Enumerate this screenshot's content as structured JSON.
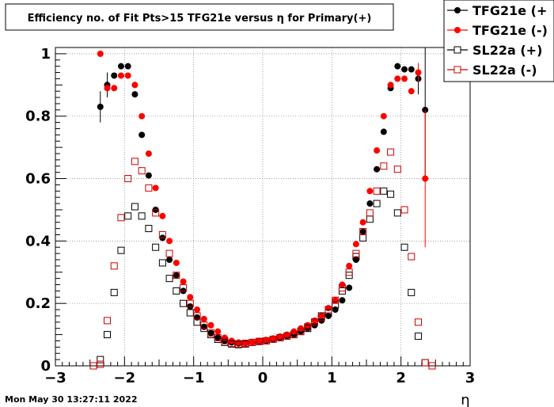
{
  "chart_data": {
    "type": "scatter",
    "title": "Efficiency no. of Fit Pts>15 TFG21e versus η for Primary(+)",
    "xlabel": "η",
    "ylabel": "",
    "xlim": [
      -3,
      3
    ],
    "ylim": [
      0,
      1.02
    ],
    "x_ticks": [
      "−3",
      "−2",
      "−1",
      "0",
      "1",
      "2",
      "3"
    ],
    "y_ticks": [
      "0",
      "0.2",
      "0.4",
      "0.6",
      "0.8",
      "1"
    ],
    "grid": true,
    "legend_position": "top-right",
    "timestamp": "Mon May 30 13:27:11 2022",
    "series": [
      {
        "name": "TFG21e (+",
        "color": "#000000",
        "marker": "filled-circle",
        "x": [
          -2.35,
          -2.25,
          -2.15,
          -2.05,
          -1.95,
          -1.85,
          -1.75,
          -1.65,
          -1.55,
          -1.45,
          -1.35,
          -1.25,
          -1.15,
          -1.05,
          -0.95,
          -0.85,
          -0.75,
          -0.65,
          -0.55,
          -0.45,
          -0.35,
          -0.25,
          -0.15,
          -0.05,
          0.05,
          0.15,
          0.25,
          0.35,
          0.45,
          0.55,
          0.65,
          0.75,
          0.85,
          0.95,
          1.05,
          1.15,
          1.25,
          1.35,
          1.45,
          1.55,
          1.65,
          1.75,
          1.85,
          1.95,
          2.05,
          2.15,
          2.25,
          2.35
        ],
        "y": [
          0.83,
          0.9,
          0.93,
          0.96,
          0.96,
          0.87,
          0.74,
          0.61,
          0.5,
          0.41,
          0.34,
          0.29,
          0.24,
          0.19,
          0.155,
          0.125,
          0.105,
          0.09,
          0.08,
          0.075,
          0.072,
          0.073,
          0.075,
          0.078,
          0.08,
          0.085,
          0.09,
          0.095,
          0.1,
          0.11,
          0.12,
          0.13,
          0.145,
          0.16,
          0.18,
          0.21,
          0.25,
          0.34,
          0.43,
          0.52,
          0.63,
          0.75,
          0.89,
          0.96,
          0.95,
          0.95,
          0.92,
          0.82
        ],
        "yerr": [
          0.05,
          0.04,
          0,
          0,
          0,
          0,
          0,
          0,
          0,
          0,
          0,
          0,
          0,
          0,
          0,
          0,
          0,
          0,
          0,
          0,
          0,
          0,
          0,
          0,
          0,
          0,
          0,
          0,
          0,
          0,
          0,
          0,
          0,
          0,
          0,
          0,
          0,
          0,
          0,
          0,
          0,
          0,
          0,
          0,
          0,
          0,
          0.05,
          0.22
        ]
      },
      {
        "name": "TFG21e (-)",
        "color": "#ff0000",
        "marker": "filled-circle",
        "x": [
          -2.35,
          -2.25,
          -2.15,
          -2.05,
          -1.95,
          -1.85,
          -1.75,
          -1.65,
          -1.55,
          -1.45,
          -1.35,
          -1.25,
          -1.15,
          -1.05,
          -0.95,
          -0.85,
          -0.75,
          -0.65,
          -0.55,
          -0.45,
          -0.35,
          -0.25,
          -0.15,
          -0.05,
          0.05,
          0.15,
          0.25,
          0.35,
          0.45,
          0.55,
          0.65,
          0.75,
          0.85,
          0.95,
          1.05,
          1.15,
          1.25,
          1.35,
          1.45,
          1.55,
          1.65,
          1.75,
          1.85,
          1.95,
          2.05,
          2.15,
          2.25,
          2.35
        ],
        "y": [
          1.0,
          0.89,
          0.89,
          0.93,
          0.93,
          0.9,
          0.8,
          0.68,
          0.57,
          0.48,
          0.4,
          0.33,
          0.27,
          0.22,
          0.18,
          0.15,
          0.13,
          0.11,
          0.09,
          0.08,
          0.075,
          0.072,
          0.075,
          0.08,
          0.083,
          0.088,
          0.094,
          0.1,
          0.11,
          0.12,
          0.13,
          0.145,
          0.16,
          0.185,
          0.21,
          0.26,
          0.32,
          0.39,
          0.46,
          0.56,
          0.69,
          0.8,
          0.9,
          0.92,
          0.92,
          0.88,
          0.94,
          0.6
        ],
        "yerr": [
          0,
          0,
          0,
          0,
          0,
          0,
          0,
          0,
          0,
          0,
          0,
          0,
          0,
          0,
          0,
          0,
          0,
          0,
          0,
          0,
          0,
          0,
          0,
          0,
          0,
          0,
          0,
          0,
          0,
          0,
          0,
          0,
          0,
          0,
          0,
          0,
          0,
          0,
          0,
          0,
          0,
          0,
          0,
          0,
          0,
          0,
          0.03,
          0.22
        ]
      },
      {
        "name": "SL22a (+)",
        "color": "#000000",
        "marker": "open-square",
        "x": [
          -2.45,
          -2.35,
          -2.25,
          -2.15,
          -2.05,
          -1.95,
          -1.85,
          -1.75,
          -1.65,
          -1.55,
          -1.45,
          -1.35,
          -1.25,
          -1.15,
          -1.05,
          -0.95,
          -0.85,
          -0.75,
          -0.65,
          -0.55,
          -0.45,
          -0.35,
          -0.25,
          -0.15,
          -0.05,
          0.05,
          0.15,
          0.25,
          0.35,
          0.45,
          0.55,
          0.65,
          0.75,
          0.85,
          0.95,
          1.05,
          1.15,
          1.25,
          1.35,
          1.45,
          1.55,
          1.65,
          1.75,
          1.85,
          1.95,
          2.05,
          2.15,
          2.25,
          2.35,
          2.45
        ],
        "y": [
          0.0,
          0.02,
          0.1,
          0.235,
          0.37,
          0.48,
          0.51,
          0.48,
          0.44,
          0.38,
          0.33,
          0.28,
          0.24,
          0.2,
          0.17,
          0.14,
          0.12,
          0.1,
          0.085,
          0.075,
          0.07,
          0.068,
          0.07,
          0.075,
          0.078,
          0.08,
          0.085,
          0.09,
          0.095,
          0.1,
          0.11,
          0.12,
          0.14,
          0.16,
          0.17,
          0.195,
          0.24,
          0.29,
          0.35,
          0.41,
          0.47,
          0.52,
          0.56,
          0.55,
          0.49,
          0.38,
          0.235,
          0.095,
          0.01,
          0.0
        ],
        "yerr": []
      },
      {
        "name": "SL22a (-)",
        "color": "#cc0000",
        "marker": "open-square",
        "x": [
          -2.45,
          -2.35,
          -2.25,
          -2.15,
          -2.05,
          -1.95,
          -1.85,
          -1.75,
          -1.65,
          -1.55,
          -1.45,
          -1.35,
          -1.25,
          -1.15,
          -1.05,
          -0.95,
          -0.85,
          -0.75,
          -0.65,
          -0.55,
          -0.45,
          -0.35,
          -0.25,
          -0.15,
          -0.05,
          0.05,
          0.15,
          0.25,
          0.35,
          0.45,
          0.55,
          0.65,
          0.75,
          0.85,
          0.95,
          1.05,
          1.15,
          1.25,
          1.35,
          1.45,
          1.55,
          1.65,
          1.75,
          1.85,
          1.95,
          2.05,
          2.15,
          2.25,
          2.35,
          2.45
        ],
        "y": [
          0.0,
          0.005,
          0.145,
          0.32,
          0.475,
          0.6,
          0.655,
          0.625,
          0.57,
          0.49,
          0.42,
          0.36,
          0.29,
          0.25,
          0.2,
          0.16,
          0.13,
          0.105,
          0.09,
          0.08,
          0.072,
          0.07,
          0.072,
          0.075,
          0.078,
          0.08,
          0.085,
          0.09,
          0.095,
          0.1,
          0.11,
          0.125,
          0.14,
          0.155,
          0.18,
          0.21,
          0.25,
          0.3,
          0.36,
          0.43,
          0.49,
          0.56,
          0.64,
          0.685,
          0.63,
          0.5,
          0.35,
          0.14,
          0.01,
          0.0
        ],
        "yerr": []
      }
    ]
  }
}
